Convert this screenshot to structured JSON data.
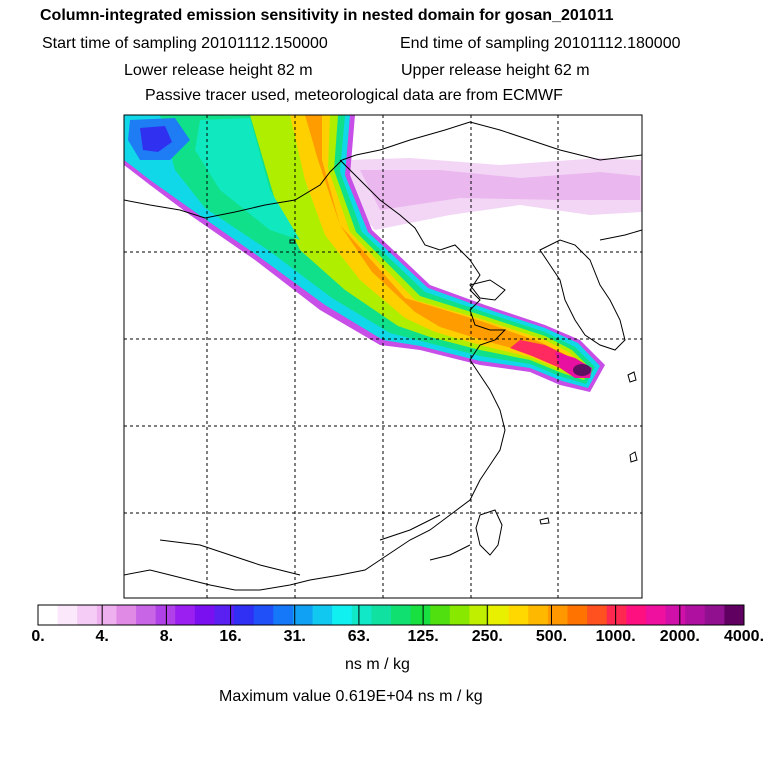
{
  "header": {
    "title": "Column-integrated emission sensitivity in nested domain for gosan_201011",
    "start_time": "Start time of sampling 20101112.150000",
    "end_time": "End time of sampling 20101112.180000",
    "lower_height": "Lower release height   82 m",
    "upper_height": "Upper release height   62 m",
    "note": "Passive tracer used, meteorological data are from ECMWF"
  },
  "colorbar": {
    "labels": [
      "0.",
      "4.",
      "8.",
      "16.",
      "31.",
      "63.",
      "125.",
      "250.",
      "500.",
      "1000.",
      "2000.",
      "4000."
    ],
    "colors": [
      "#ffffff",
      "#fbe8fb",
      "#f5ccf5",
      "#eeb0ee",
      "#e08ae6",
      "#c865e6",
      "#b040e8",
      "#9a1ff0",
      "#7a10f0",
      "#5a20f2",
      "#3030f4",
      "#2050f8",
      "#1478f8",
      "#10a0f4",
      "#10c8f0",
      "#10f0f0",
      "#10e8c8",
      "#10e0a0",
      "#10e070",
      "#18e040",
      "#50e010",
      "#88e800",
      "#c0f000",
      "#e8f000",
      "#ffd800",
      "#ffb800",
      "#ff9800",
      "#ff7400",
      "#ff5020",
      "#ff2850",
      "#ff1080",
      "#f010a0",
      "#d010a8",
      "#b010a0",
      "#901090",
      "#600060"
    ]
  },
  "units": "ns m / kg",
  "max_value": "Maximum value  0.619E+04 ns m / kg"
}
